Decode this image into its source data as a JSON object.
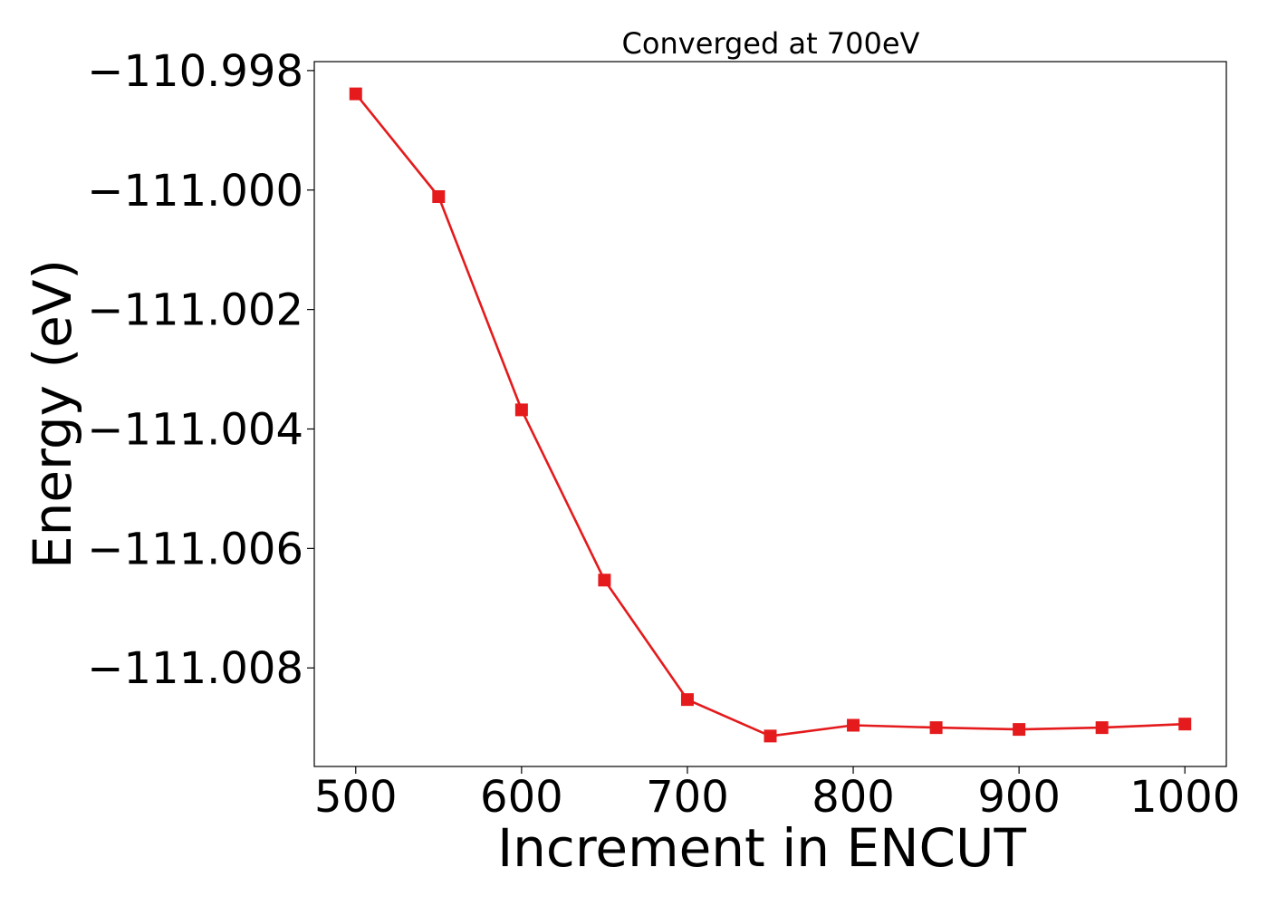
{
  "chart_data": {
    "type": "line",
    "title": "Converged at 700eV",
    "xlabel": "Increment in ENCUT",
    "ylabel": "Energy (eV)",
    "xlim": [
      475,
      1025
    ],
    "ylim": [
      -111.00965,
      -110.99785
    ],
    "x_ticks": [
      500,
      600,
      700,
      800,
      900,
      1000
    ],
    "x_tick_labels": [
      "500",
      "600",
      "700",
      "800",
      "900",
      "1000"
    ],
    "y_ticks": [
      -110.998,
      -111.0,
      -111.002,
      -111.004,
      -111.006,
      -111.008
    ],
    "y_tick_labels": [
      "−110.998",
      "−111.000",
      "−111.002",
      "−111.004",
      "−111.006",
      "−111.008"
    ],
    "grid": false,
    "color": "#e41a1c",
    "marker": "square",
    "series": [
      {
        "x": [
          500,
          550,
          600,
          650,
          700,
          750,
          800,
          850,
          900,
          950,
          1000
        ],
        "y": [
          -110.99839,
          -111.00011,
          -111.00368,
          -111.00653,
          -111.00853,
          -111.00914,
          -111.00896,
          -111.009,
          -111.00903,
          -111.009,
          -111.00894
        ]
      }
    ]
  }
}
